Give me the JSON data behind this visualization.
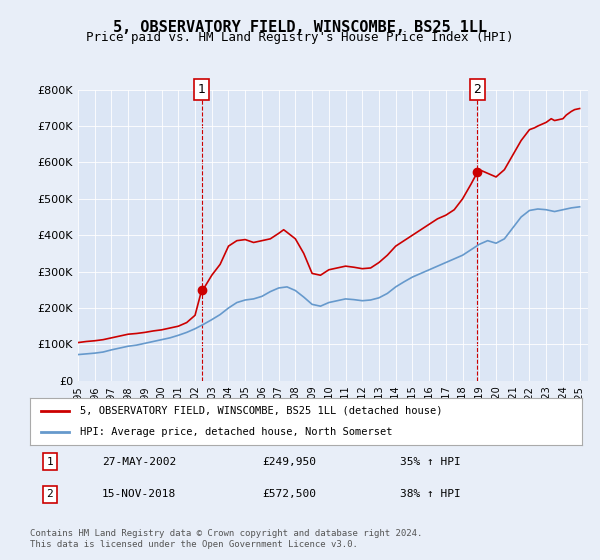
{
  "title": "5, OBSERVATORY FIELD, WINSCOMBE, BS25 1LL",
  "subtitle": "Price paid vs. HM Land Registry's House Price Index (HPI)",
  "background_color": "#e8eef8",
  "plot_bg_color": "#dce6f5",
  "ylim": [
    0,
    800000
  ],
  "yticks": [
    0,
    100000,
    200000,
    300000,
    400000,
    500000,
    600000,
    700000,
    800000
  ],
  "ytick_labels": [
    "£0",
    "£100K",
    "£200K",
    "£300K",
    "£400K",
    "£500K",
    "£600K",
    "£700K",
    "£800K"
  ],
  "year_start": 1995,
  "year_end": 2025,
  "red_line_color": "#cc0000",
  "blue_line_color": "#6699cc",
  "marker1_year": 2002.4,
  "marker1_value": 249950,
  "marker2_year": 2018.88,
  "marker2_value": 572500,
  "legend_label1": "5, OBSERVATORY FIELD, WINSCOMBE, BS25 1LL (detached house)",
  "legend_label2": "HPI: Average price, detached house, North Somerset",
  "annotation1_date": "27-MAY-2002",
  "annotation1_price": "£249,950",
  "annotation1_hpi": "35% ↑ HPI",
  "annotation2_date": "15-NOV-2018",
  "annotation2_price": "£572,500",
  "annotation2_hpi": "38% ↑ HPI",
  "footer": "Contains HM Land Registry data © Crown copyright and database right 2024.\nThis data is licensed under the Open Government Licence v3.0.",
  "red_x": [
    1995.0,
    1995.5,
    1996.0,
    1996.5,
    1997.0,
    1997.5,
    1998.0,
    1998.5,
    1999.0,
    1999.5,
    2000.0,
    2000.5,
    2001.0,
    2001.5,
    2002.0,
    2002.4,
    2002.5,
    2003.0,
    2003.5,
    2004.0,
    2004.5,
    2005.0,
    2005.5,
    2006.0,
    2006.5,
    2007.0,
    2007.3,
    2007.5,
    2008.0,
    2008.5,
    2009.0,
    2009.5,
    2010.0,
    2010.5,
    2011.0,
    2011.5,
    2012.0,
    2012.5,
    2013.0,
    2013.5,
    2014.0,
    2014.5,
    2015.0,
    2015.5,
    2016.0,
    2016.5,
    2017.0,
    2017.5,
    2018.0,
    2018.5,
    2018.88,
    2019.0,
    2019.5,
    2020.0,
    2020.5,
    2021.0,
    2021.5,
    2022.0,
    2022.3,
    2022.5,
    2023.0,
    2023.3,
    2023.5,
    2024.0,
    2024.2,
    2024.5,
    2024.7,
    2025.0
  ],
  "red_y": [
    105000,
    108000,
    110000,
    113000,
    118000,
    123000,
    128000,
    130000,
    133000,
    137000,
    140000,
    145000,
    150000,
    160000,
    180000,
    249950,
    252000,
    290000,
    320000,
    370000,
    385000,
    388000,
    380000,
    385000,
    390000,
    405000,
    415000,
    408000,
    390000,
    350000,
    295000,
    290000,
    305000,
    310000,
    315000,
    312000,
    308000,
    310000,
    325000,
    345000,
    370000,
    385000,
    400000,
    415000,
    430000,
    445000,
    455000,
    470000,
    500000,
    540000,
    572500,
    580000,
    570000,
    560000,
    580000,
    620000,
    660000,
    690000,
    695000,
    700000,
    710000,
    720000,
    715000,
    720000,
    730000,
    740000,
    745000,
    748000
  ],
  "blue_x": [
    1995.0,
    1995.5,
    1996.0,
    1996.5,
    1997.0,
    1997.5,
    1998.0,
    1998.5,
    1999.0,
    1999.5,
    2000.0,
    2000.5,
    2001.0,
    2001.5,
    2002.0,
    2002.5,
    2003.0,
    2003.5,
    2004.0,
    2004.5,
    2005.0,
    2005.5,
    2006.0,
    2006.5,
    2007.0,
    2007.5,
    2008.0,
    2008.5,
    2009.0,
    2009.5,
    2010.0,
    2010.5,
    2011.0,
    2011.5,
    2012.0,
    2012.5,
    2013.0,
    2013.5,
    2014.0,
    2014.5,
    2015.0,
    2015.5,
    2016.0,
    2016.5,
    2017.0,
    2017.5,
    2018.0,
    2018.5,
    2019.0,
    2019.5,
    2020.0,
    2020.5,
    2021.0,
    2021.5,
    2022.0,
    2022.5,
    2023.0,
    2023.5,
    2024.0,
    2024.5,
    2025.0
  ],
  "blue_y": [
    72000,
    74000,
    76000,
    79000,
    85000,
    90000,
    95000,
    98000,
    103000,
    108000,
    113000,
    118000,
    125000,
    133000,
    143000,
    155000,
    168000,
    182000,
    200000,
    215000,
    222000,
    225000,
    232000,
    245000,
    255000,
    258000,
    248000,
    230000,
    210000,
    205000,
    215000,
    220000,
    225000,
    223000,
    220000,
    222000,
    228000,
    240000,
    258000,
    272000,
    285000,
    295000,
    305000,
    315000,
    325000,
    335000,
    345000,
    360000,
    375000,
    385000,
    378000,
    390000,
    420000,
    450000,
    468000,
    472000,
    470000,
    465000,
    470000,
    475000,
    478000
  ]
}
